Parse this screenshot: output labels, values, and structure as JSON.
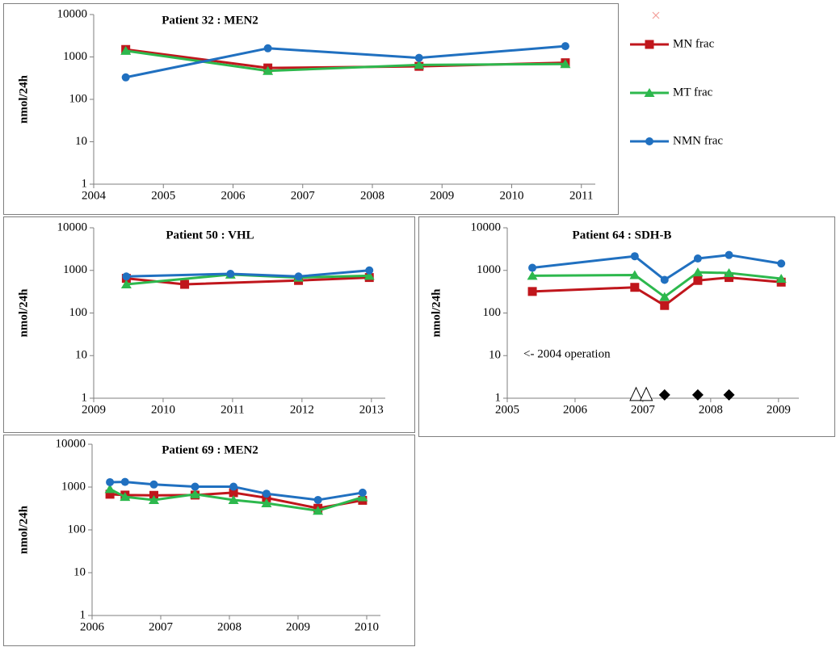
{
  "chart_data": [
    {
      "type": "line",
      "title": "Patient 32 : MEN2",
      "ylabel": "nmol/24h",
      "log_y": true,
      "xlim": [
        2004,
        2011.2
      ],
      "xticks": [
        2004,
        2005,
        2006,
        2007,
        2008,
        2009,
        2010,
        2011
      ],
      "ylim": [
        1,
        10000
      ],
      "yticks": [
        1,
        10,
        100,
        1000,
        10000
      ],
      "series": [
        {
          "name": "MN frac",
          "color": "#c0161c",
          "marker": "square",
          "x": [
            2004.46,
            2006.5,
            2008.67,
            2010.77
          ],
          "values": [
            1500,
            550,
            600,
            730
          ]
        },
        {
          "name": "MT frac",
          "color": "#2db84d",
          "marker": "triangle",
          "x": [
            2004.46,
            2006.5,
            2008.67,
            2010.77
          ],
          "values": [
            1400,
            470,
            650,
            680
          ]
        },
        {
          "name": "NMN frac",
          "color": "#2070c0",
          "marker": "circle",
          "x": [
            2004.46,
            2006.5,
            2008.67,
            2010.77
          ],
          "values": [
            330,
            1600,
            950,
            1800
          ]
        }
      ]
    },
    {
      "type": "line",
      "title": "Patient 50 : VHL",
      "ylabel": "nmol/24h",
      "log_y": true,
      "xlim": [
        2009,
        2013.2
      ],
      "xticks": [
        2009,
        2010,
        2011,
        2012,
        2013
      ],
      "ylim": [
        1,
        10000
      ],
      "yticks": [
        1,
        10,
        100,
        1000,
        10000
      ],
      "series": [
        {
          "name": "MN frac",
          "color": "#c0161c",
          "marker": "square",
          "x": [
            2009.47,
            2010.31,
            2011.95,
            2012.97
          ],
          "values": [
            650,
            470,
            580,
            680
          ]
        },
        {
          "name": "MT frac",
          "color": "#2db84d",
          "marker": "triangle",
          "x": [
            2009.47,
            2010.97,
            2011.95,
            2012.97
          ],
          "values": [
            470,
            800,
            680,
            750
          ]
        },
        {
          "name": "NMN frac",
          "color": "#2070c0",
          "marker": "circle",
          "x": [
            2009.47,
            2010.97,
            2011.95,
            2012.97
          ],
          "values": [
            720,
            830,
            720,
            1000
          ]
        }
      ]
    },
    {
      "type": "line",
      "title": "Patient 64 : SDH-B",
      "ylabel": "nmol/24h",
      "log_y": true,
      "annotation": "<- 2004 operation",
      "xlim": [
        2005,
        2009.3
      ],
      "xticks": [
        2005,
        2006,
        2007,
        2008,
        2009
      ],
      "ylim": [
        1,
        10000
      ],
      "yticks": [
        1,
        10,
        100,
        1000,
        10000
      ],
      "series": [
        {
          "name": "MN frac",
          "color": "#c0161c",
          "marker": "square",
          "x": [
            2005.37,
            2006.88,
            2007.32,
            2007.81,
            2008.27,
            2009.04
          ],
          "values": [
            320,
            400,
            150,
            580,
            680,
            530
          ]
        },
        {
          "name": "MT frac",
          "color": "#2db84d",
          "marker": "triangle",
          "x": [
            2005.37,
            2006.88,
            2007.32,
            2007.81,
            2008.27,
            2009.04
          ],
          "values": [
            750,
            780,
            240,
            900,
            870,
            640
          ]
        },
        {
          "name": "NMN frac",
          "color": "#2070c0",
          "marker": "circle",
          "x": [
            2005.37,
            2006.88,
            2007.32,
            2007.81,
            2008.27,
            2009.04
          ],
          "values": [
            1150,
            2150,
            600,
            1900,
            2300,
            1450
          ]
        },
        {
          "color": "#000000",
          "marker": "open-triangle",
          "line": false,
          "x": [
            2006.9,
            2007.05
          ],
          "values": [
            1.2,
            1.2
          ]
        },
        {
          "color": "#000000",
          "marker": "diamond",
          "line": false,
          "x": [
            2007.32,
            2007.81,
            2008.27
          ],
          "values": [
            1.2,
            1.2,
            1.2
          ]
        }
      ]
    },
    {
      "type": "line",
      "title": "Patient 69 : MEN2",
      "ylabel": "nmol/24h",
      "log_y": true,
      "xlim": [
        2006,
        2010.2
      ],
      "xticks": [
        2006,
        2007,
        2008,
        2009,
        2010
      ],
      "ylim": [
        1,
        10000
      ],
      "yticks": [
        1,
        10,
        100,
        1000,
        10000
      ],
      "series": [
        {
          "name": "MN frac",
          "color": "#c0161c",
          "marker": "square",
          "x": [
            2006.26,
            2006.48,
            2006.9,
            2007.5,
            2008.06,
            2008.54,
            2009.29,
            2009.94
          ],
          "values": [
            680,
            650,
            640,
            650,
            740,
            560,
            320,
            490
          ]
        },
        {
          "name": "MT frac",
          "color": "#2db84d",
          "marker": "triangle",
          "x": [
            2006.26,
            2006.48,
            2006.9,
            2007.5,
            2008.06,
            2008.54,
            2009.29,
            2009.94
          ],
          "values": [
            900,
            590,
            500,
            680,
            500,
            420,
            280,
            580
          ]
        },
        {
          "name": "NMN frac",
          "color": "#2070c0",
          "marker": "circle",
          "x": [
            2006.26,
            2006.48,
            2006.9,
            2007.5,
            2008.06,
            2008.54,
            2009.29,
            2009.94
          ],
          "values": [
            1300,
            1320,
            1150,
            1020,
            1020,
            700,
            500,
            740
          ]
        }
      ]
    }
  ]
}
